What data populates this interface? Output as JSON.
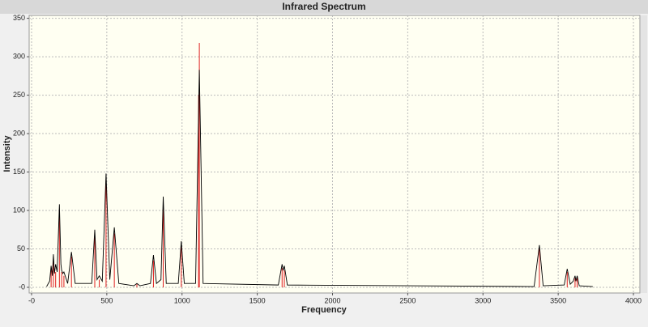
{
  "chart_data": {
    "type": "line",
    "title": "Infrared Spectrum",
    "x_label": "Frequency",
    "y_label": "Intensity",
    "xlim": [
      -16,
      4043
    ],
    "ylim": [
      -7.4,
      353.8
    ],
    "xticks": [
      {
        "value": 0,
        "label": "-0"
      },
      500,
      1000,
      1500,
      2000,
      2500,
      3000,
      3500,
      4000
    ],
    "yticks": [
      {
        "value": 0,
        "label": "-0"
      },
      50,
      100,
      150,
      200,
      250,
      300,
      350
    ],
    "grid": true,
    "series": [
      {
        "color": "#e02020",
        "drawstyle": "stem",
        "x": [
          130,
          145,
          160,
          185,
          200,
          215,
          265,
          420,
          450,
          495,
          550,
          700,
          810,
          875,
          995,
          1110,
          1115,
          1665,
          1680,
          3375,
          3560,
          3612,
          3626
        ],
        "values": [
          25,
          35,
          20,
          100,
          20,
          15,
          40,
          65,
          10,
          140,
          70,
          4,
          35,
          113,
          55,
          250,
          318,
          25,
          22,
          50,
          20,
          12,
          14
        ]
      },
      {
        "color": "#000000",
        "drawstyle": "line",
        "x": [
          100,
          120,
          130,
          138,
          145,
          152,
          160,
          170,
          185,
          195,
          200,
          208,
          215,
          240,
          265,
          290,
          400,
          420,
          435,
          450,
          470,
          495,
          520,
          550,
          580,
          680,
          700,
          720,
          790,
          810,
          830,
          860,
          875,
          895,
          975,
          995,
          1015,
          1090,
          1115,
          1140,
          1640,
          1665,
          1672,
          1680,
          1700,
          3340,
          3375,
          3400,
          3540,
          3560,
          3580,
          3600,
          3612,
          3618,
          3626,
          3640,
          3730
        ],
        "values": [
          1,
          8,
          28,
          15,
          43,
          18,
          30,
          20,
          108,
          30,
          22,
          18,
          20,
          5,
          46,
          5,
          5,
          75,
          10,
          15,
          8,
          148,
          10,
          78,
          5,
          2,
          5,
          2,
          5,
          42,
          5,
          10,
          118,
          5,
          5,
          60,
          5,
          5,
          283,
          5,
          3,
          30,
          22,
          28,
          3,
          1,
          55,
          2,
          3,
          24,
          4,
          8,
          15,
          8,
          15,
          2,
          1
        ]
      }
    ]
  }
}
